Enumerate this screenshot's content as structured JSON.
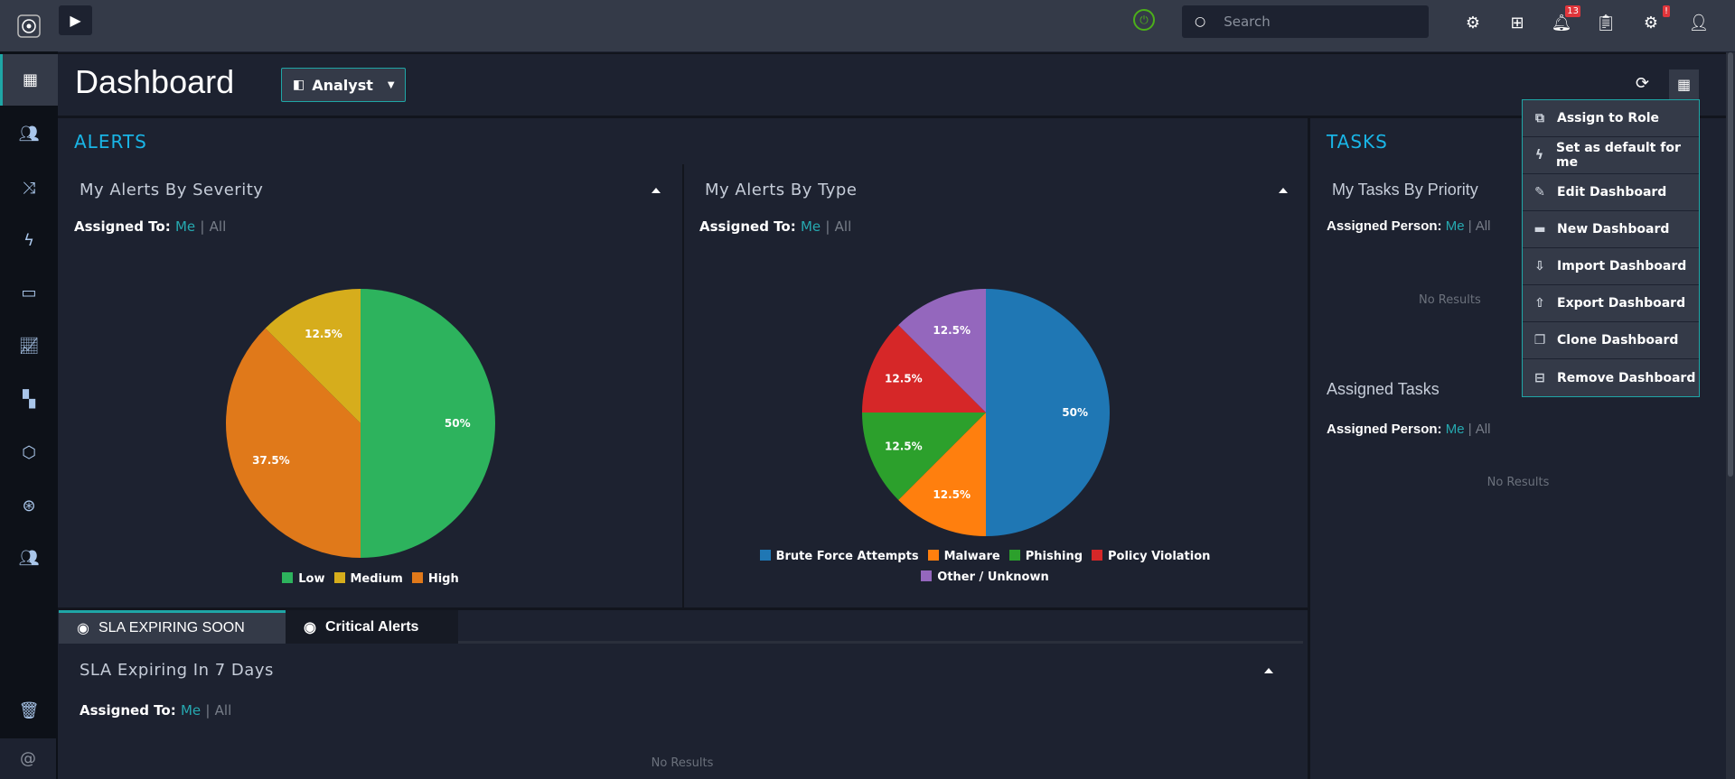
{
  "topbar": {
    "search_placeholder": "Search",
    "notifications_count": "13",
    "system_alert_badge": "!",
    "icons": [
      "plug-status-icon",
      "search-icon",
      "gear-icon",
      "hierarchy-icon",
      "bell-icon",
      "clipboard-check-icon",
      "settings-monitor-icon",
      "user-icon"
    ]
  },
  "sidebar": {
    "items": [
      "dashboard",
      "incidents",
      "workflows",
      "automation",
      "cases",
      "analytics",
      "apps",
      "security",
      "support",
      "users",
      "trash",
      "at-mention"
    ]
  },
  "header": {
    "title": "Dashboard",
    "dashboard_select": "Analyst"
  },
  "alerts": {
    "section_title": "ALERTS",
    "severity_panel": {
      "title": "My Alerts By Severity",
      "assigned_label": "Assigned To:",
      "me": "Me",
      "sep": "|",
      "all": "All"
    },
    "type_panel": {
      "title": "My Alerts By Type",
      "assigned_label": "Assigned To:",
      "me": "Me",
      "sep": "|",
      "all": "All"
    }
  },
  "tabs": [
    {
      "label": "SLA EXPIRING SOON",
      "active": true
    },
    {
      "label": "Critical Alerts",
      "active": false
    }
  ],
  "sla_panel": {
    "title": "SLA Expiring In 7 Days",
    "assigned_label": "Assigned To:",
    "me": "Me",
    "sep": "|",
    "all": "All",
    "empty": "No Results"
  },
  "tasks": {
    "section_title": "TASKS",
    "priority_panel": {
      "title": "My Tasks By Priority",
      "assigned_label": "Assigned Person:",
      "me": "Me",
      "sep": "|",
      "all": "All",
      "empty": "No Results"
    },
    "assigned_panel": {
      "title": "Assigned Tasks",
      "assigned_label": "Assigned Person:",
      "me": "Me",
      "sep": "|",
      "all": "All",
      "empty": "No Results"
    }
  },
  "dashboard_menu": {
    "items": [
      {
        "label": "Assign to Role",
        "icon": "assign-role-icon"
      },
      {
        "label": "Set as default for me",
        "icon": "bolt-circle-icon"
      },
      {
        "label": "Edit Dashboard",
        "icon": "edit-icon"
      },
      {
        "label": "New Dashboard",
        "icon": "new-dashboard-icon"
      },
      {
        "label": "Import Dashboard",
        "icon": "import-icon"
      },
      {
        "label": "Export Dashboard",
        "icon": "export-icon"
      },
      {
        "label": "Clone Dashboard",
        "icon": "clone-icon"
      },
      {
        "label": "Remove Dashboard",
        "icon": "remove-icon"
      }
    ]
  },
  "accent": "#1fa6a6",
  "chart_data": [
    {
      "type": "pie",
      "title": "My Alerts By Severity",
      "categories": [
        "Low",
        "Medium",
        "High"
      ],
      "values": [
        50,
        12.5,
        37.5
      ],
      "labels": [
        "50%",
        "12.5%",
        "37.5%"
      ],
      "colors": [
        "#2db35d",
        "#d6ad1c",
        "#e0791a"
      ],
      "legend": "bottom"
    },
    {
      "type": "pie",
      "title": "My Alerts By Type",
      "categories": [
        "Brute Force Attempts",
        "Malware",
        "Phishing",
        "Policy Violation",
        "Other / Unknown"
      ],
      "values": [
        50,
        12.5,
        12.5,
        12.5,
        12.5
      ],
      "labels": [
        "50%",
        "12.5%",
        "12.5%",
        "12.5%",
        "12.5%"
      ],
      "colors": [
        "#1f77b4",
        "#ff7f0e",
        "#2ca02c",
        "#d62728",
        "#9467bd"
      ],
      "legend": "bottom"
    }
  ]
}
